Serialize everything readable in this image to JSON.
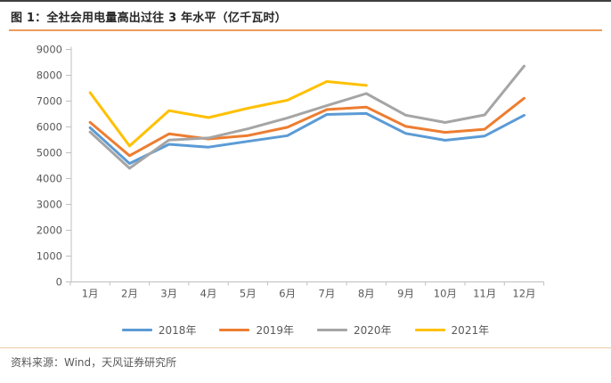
{
  "figure": {
    "title": "图 1：全社会用电量高出过往 3 年水平（亿千瓦时）",
    "source_note": "资料来源：Wind，天风证券研究所"
  },
  "colors": {
    "top_border": "#404040",
    "title_text": "#262626",
    "title_rule": "#ED9C5B",
    "footer_rule": "#EBCDA9",
    "axis_line": "#BFBFBF",
    "axis_text": "#595959"
  },
  "chart_data": {
    "type": "line",
    "title": "全社会用电量高出过往 3 年水平（亿千瓦时）",
    "categories": [
      "1月",
      "2月",
      "3月",
      "4月",
      "5月",
      "6月",
      "7月",
      "8月",
      "9月",
      "10月",
      "11月",
      "12月"
    ],
    "series": [
      {
        "name": "2018年",
        "color": "#5B9BD5",
        "values": [
          5969,
          4583,
          5326,
          5217,
          5443,
          5663,
          6484,
          6521,
          5749,
          5483,
          5647,
          6451
        ]
      },
      {
        "name": "2019年",
        "color": "#ED7D31",
        "values": [
          6176,
          4887,
          5732,
          5534,
          5665,
          5987,
          6672,
          6770,
          6020,
          5790,
          5912,
          7110
        ]
      },
      {
        "name": "2020年",
        "color": "#A5A5A5",
        "values": [
          5802,
          4401,
          5493,
          5572,
          5926,
          6350,
          6824,
          7294,
          6454,
          6172,
          6467,
          8355
        ]
      },
      {
        "name": "2021年",
        "color": "#FFC000",
        "values": [
          7327,
          5261,
          6631,
          6361,
          6724,
          7033,
          7758,
          7607,
          null,
          null,
          null,
          null
        ]
      }
    ],
    "ylim": [
      0,
      9000
    ],
    "ytick_step": 1000,
    "xlabel": "",
    "ylabel": "",
    "grid": false,
    "legend_position": "bottom"
  }
}
